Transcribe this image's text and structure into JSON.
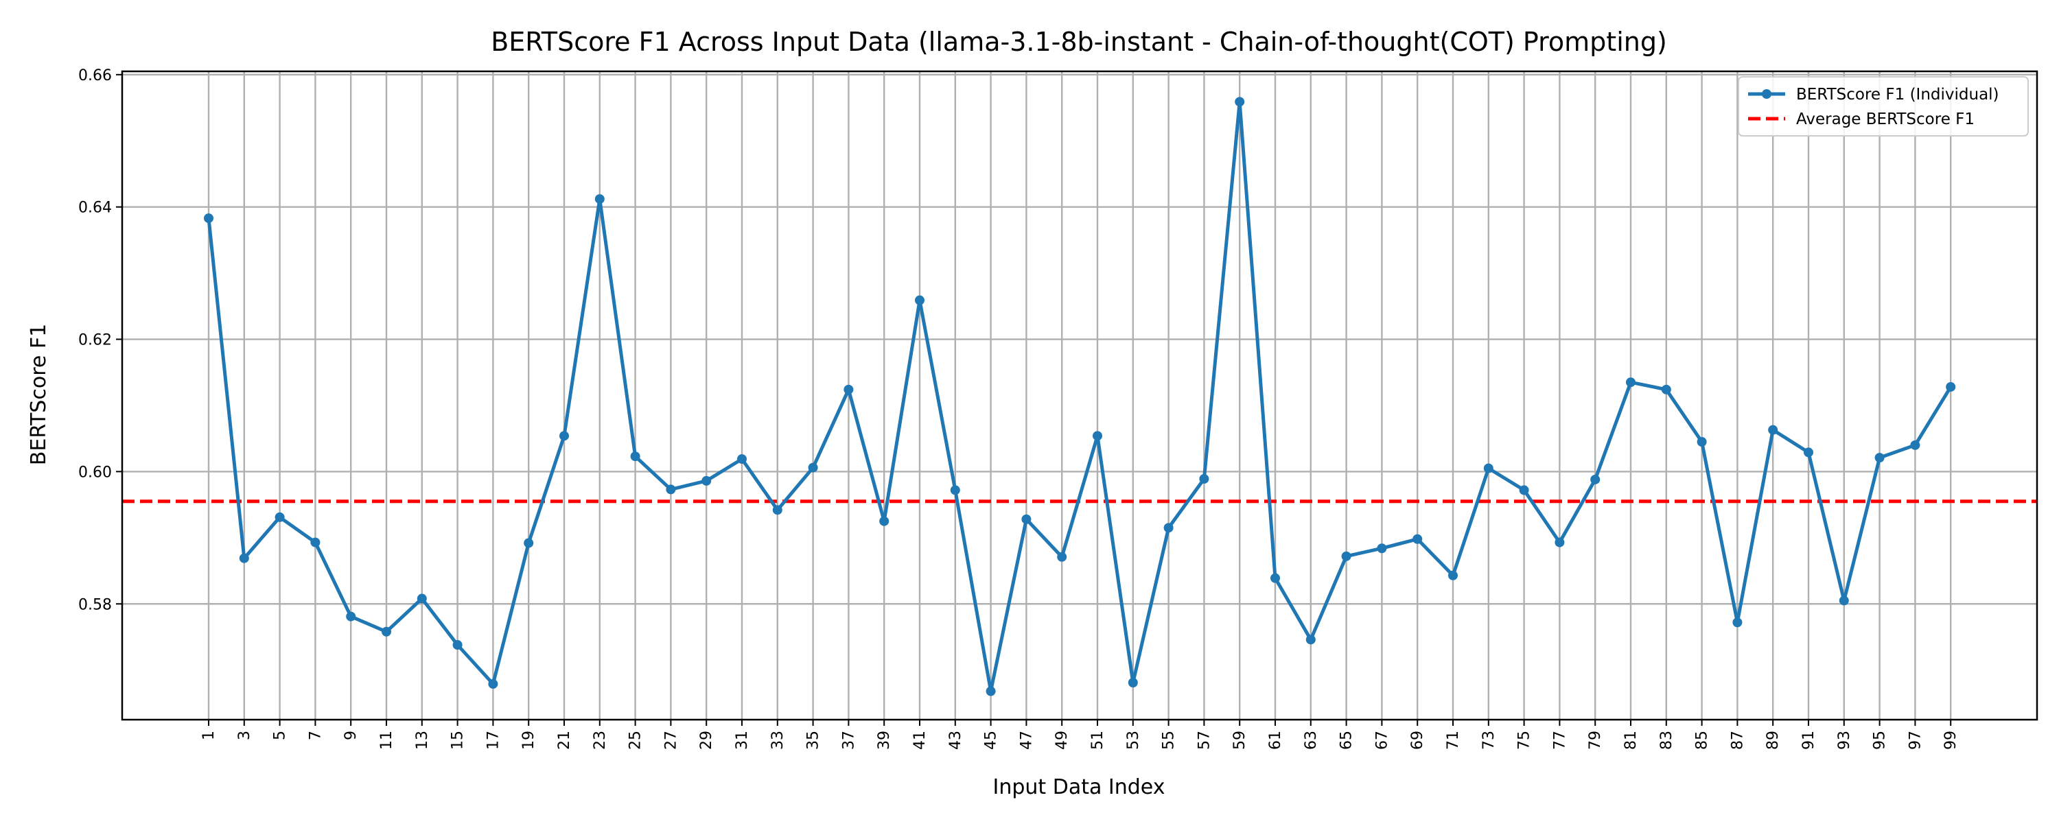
{
  "chart_data": {
    "type": "line",
    "title": "BERTScore F1 Across Input Data (llama-3.1-8b-instant - Chain-of-thought(COT) Prompting)",
    "xlabel": "Input Data Index",
    "ylabel": "BERTScore F1",
    "ylim": [
      0.5625,
      0.6605
    ],
    "yticks": [
      0.58,
      0.6,
      0.62,
      0.64,
      0.66
    ],
    "ytick_labels": [
      "0.58",
      "0.60",
      "0.62",
      "0.64",
      "0.66"
    ],
    "x": [
      1,
      3,
      5,
      7,
      9,
      11,
      13,
      15,
      17,
      19,
      21,
      23,
      25,
      27,
      29,
      31,
      33,
      35,
      37,
      39,
      41,
      43,
      45,
      47,
      49,
      51,
      53,
      55,
      57,
      59,
      61,
      63,
      65,
      67,
      69,
      71,
      73,
      75,
      77,
      79,
      81,
      83,
      85,
      87,
      89,
      91,
      93,
      95,
      97,
      99
    ],
    "xtick_labels": [
      "1",
      "3",
      "5",
      "7",
      "9",
      "11",
      "13",
      "15",
      "17",
      "19",
      "21",
      "23",
      "25",
      "27",
      "29",
      "31",
      "33",
      "35",
      "37",
      "39",
      "41",
      "43",
      "45",
      "47",
      "49",
      "51",
      "53",
      "55",
      "57",
      "59",
      "61",
      "63",
      "65",
      "67",
      "69",
      "71",
      "73",
      "75",
      "77",
      "79",
      "81",
      "83",
      "85",
      "87",
      "89",
      "91",
      "93",
      "95",
      "97",
      "99"
    ],
    "series": [
      {
        "name": "BERTScore F1 (Individual)",
        "color": "#1f77b4",
        "style": "solid-with-markers",
        "values": [
          0.6383,
          0.5869,
          0.5931,
          0.5893,
          0.5781,
          0.5758,
          0.5808,
          0.5738,
          0.5679,
          0.5892,
          0.6054,
          0.6412,
          0.6023,
          0.5973,
          0.5986,
          0.6019,
          0.5942,
          0.6006,
          0.6124,
          0.5925,
          0.6259,
          0.5972,
          0.5668,
          0.5928,
          0.5871,
          0.6054,
          0.5681,
          0.5915,
          0.5989,
          0.6559,
          0.5839,
          0.5746,
          0.5872,
          0.5884,
          0.5898,
          0.5843,
          0.6005,
          0.5972,
          0.5893,
          0.5988,
          0.6135,
          0.6124,
          0.6045,
          0.5772,
          0.6063,
          0.6029,
          0.5805,
          0.6021,
          0.604,
          0.6128
        ]
      },
      {
        "name": "Average BERTScore F1",
        "color": "#ff0000",
        "style": "dashed",
        "constant": 0.5955
      }
    ],
    "grid": true,
    "legend_position": "top-right"
  }
}
